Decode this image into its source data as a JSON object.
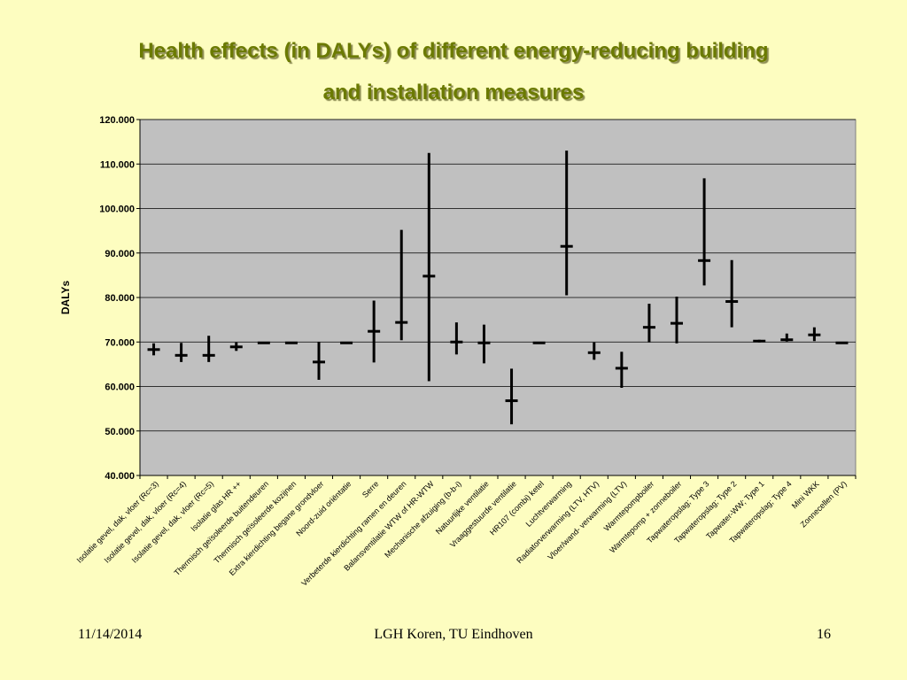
{
  "slide": {
    "title_line1": "Health effects (in DALYs) of different energy-reducing building",
    "title_line2": "and installation measures",
    "footer_date": "11/14/2014",
    "footer_center": "LGH Koren, TU Eindhoven",
    "page_number": "16"
  },
  "colors": {
    "background": "#fdfdc0",
    "plot_area": "#c0c0c0",
    "title": "#6b7a00",
    "marks": "#000000"
  },
  "chart_data": {
    "type": "errorbar",
    "title": "",
    "xlabel": "",
    "ylabel": "DALYs",
    "ylim": [
      40000,
      120000
    ],
    "y_ticks": [
      40000,
      50000,
      60000,
      70000,
      80000,
      90000,
      100000,
      110000,
      120000
    ],
    "y_tick_labels": [
      "40.000",
      "50.000",
      "60.000",
      "70.000",
      "80.000",
      "90.000",
      "100.000",
      "110.000",
      "120.000"
    ],
    "grid": true,
    "categories": [
      "Isolatie gevel, dak, vloer (Rc=3)",
      "Isolatie gevel, dak, vloer (Rc=4)",
      "Isolatie gevel, dak, vloer (Rc=5)",
      "Isolatie glas HR ++",
      "Thermisch geïsoleerde buitendeuren",
      "Thermisch geïsoleerde kozijnen",
      "Extra kierdichting begane grondvloer",
      "Noord-zuid oriëntatie",
      "Serre",
      "Verbeterde kierdichting ramen en deuren",
      "Balansventilatie WTW of HR-WTW",
      "Mechanische afzuiging (b-b-i)",
      "Natuurlijke ventilatie",
      "Vraaggestuurde ventilatie",
      "HR107 (combi) ketel",
      "Luchtverwarming",
      "Radiatorverwarming (LTV, HTV)",
      "Vloer/wand- verwarming (LTV)",
      "Warmtepompboiler",
      "Warmtepomp + zonneboiler",
      "Tapwateropslag; Type 3",
      "Tapwateropslag; Type 2",
      "Tapwater-WW; Type 1",
      "Tapwateropslag; Type 4",
      "Mini WKK",
      "Zonnecellen (PV)"
    ],
    "central": [
      68300,
      67000,
      67000,
      68900,
      69800,
      69800,
      65500,
      69800,
      72400,
      74400,
      84800,
      70000,
      69800,
      56800,
      69800,
      91500,
      67600,
      64100,
      73300,
      74200,
      88300,
      79100,
      70200,
      70500,
      71600,
      69800
    ],
    "low": [
      67000,
      65500,
      65500,
      68000,
      69800,
      69800,
      61500,
      69800,
      65400,
      70400,
      61200,
      67200,
      65200,
      51500,
      69800,
      80500,
      66000,
      59700,
      69900,
      69700,
      82700,
      73300,
      69900,
      70100,
      70200,
      69800
    ],
    "high": [
      69700,
      69800,
      71400,
      69900,
      69800,
      69800,
      70000,
      69800,
      79300,
      95200,
      112500,
      74400,
      73900,
      64000,
      69800,
      113000,
      69900,
      67800,
      78600,
      80200,
      106800,
      88400,
      70500,
      71900,
      73300,
      69800
    ]
  }
}
